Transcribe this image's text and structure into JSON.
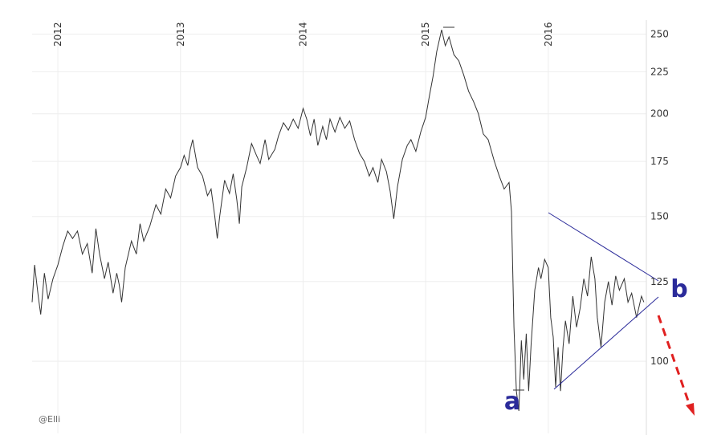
{
  "chart_data": {
    "type": "line",
    "color": "#333333",
    "log_scale": true,
    "grid": true,
    "xlim": [
      2011.79,
      2016.8
    ],
    "xticks": [
      2012,
      2013,
      2014,
      2015,
      2016
    ],
    "ylim": [
      81.7,
      260
    ],
    "yticks": [
      100,
      125,
      150,
      175,
      200,
      225,
      250
    ],
    "x": [
      2011.79,
      2011.81,
      2011.84,
      2011.86,
      2011.89,
      2011.92,
      2011.96,
      2012.0,
      2012.04,
      2012.08,
      2012.12,
      2012.16,
      2012.2,
      2012.24,
      2012.28,
      2012.31,
      2012.34,
      2012.38,
      2012.41,
      2012.45,
      2012.48,
      2012.5,
      2012.52,
      2012.55,
      2012.6,
      2012.64,
      2012.67,
      2012.7,
      2012.75,
      2012.8,
      2012.84,
      2012.88,
      2012.92,
      2012.96,
      2013.0,
      2013.03,
      2013.06,
      2013.08,
      2013.1,
      2013.14,
      2013.18,
      2013.22,
      2013.25,
      2013.28,
      2013.3,
      2013.32,
      2013.36,
      2013.4,
      2013.43,
      2013.46,
      2013.48,
      2013.5,
      2013.54,
      2013.58,
      2013.62,
      2013.65,
      2013.69,
      2013.72,
      2013.77,
      2013.8,
      2013.84,
      2013.88,
      2013.92,
      2013.96,
      2014.0,
      2014.03,
      2014.06,
      2014.09,
      2014.12,
      2014.16,
      2014.19,
      2014.22,
      2014.26,
      2014.3,
      2014.34,
      2014.38,
      2014.42,
      2014.46,
      2014.5,
      2014.54,
      2014.57,
      2014.61,
      2014.64,
      2014.68,
      2014.71,
      2014.74,
      2014.77,
      2014.81,
      2014.85,
      2014.88,
      2014.92,
      2014.96,
      2015.0,
      2015.03,
      2015.06,
      2015.09,
      2015.13,
      2015.16,
      2015.19,
      2015.23,
      2015.27,
      2015.31,
      2015.35,
      2015.39,
      2015.43,
      2015.47,
      2015.51,
      2015.56,
      2015.6,
      2015.64,
      2015.68,
      2015.7,
      2015.72,
      2015.74,
      2015.76,
      2015.78,
      2015.8,
      2015.82,
      2015.84,
      2015.86,
      2015.89,
      2015.92,
      2015.94,
      2015.97,
      2016.0,
      2016.02,
      2016.04,
      2016.06,
      2016.08,
      2016.1,
      2016.12,
      2016.14,
      2016.17,
      2016.2,
      2016.23,
      2016.26,
      2016.29,
      2016.32,
      2016.35,
      2016.38,
      2016.4,
      2016.43,
      2016.46,
      2016.49,
      2016.52,
      2016.55,
      2016.58,
      2016.62,
      2016.65,
      2016.68,
      2016.72,
      2016.76,
      2016.78
    ],
    "values": [
      118,
      131,
      120,
      114,
      128,
      119,
      126,
      131,
      138,
      144,
      141,
      144,
      135,
      139,
      128,
      145,
      135,
      126,
      132,
      121,
      128,
      124,
      118,
      130,
      140,
      135,
      147,
      140,
      146,
      155,
      151,
      162,
      158,
      168,
      172,
      178,
      173,
      181,
      186,
      172,
      168,
      159,
      162,
      150,
      141,
      150,
      166,
      160,
      169,
      157,
      147,
      163,
      172,
      184,
      178,
      174,
      186,
      176,
      181,
      188,
      195,
      191,
      197,
      192,
      203,
      197,
      188,
      197,
      183,
      193,
      186,
      197,
      190,
      198,
      192,
      196,
      186,
      179,
      175,
      168,
      172,
      165,
      176,
      170,
      161,
      149,
      163,
      176,
      183,
      186,
      180,
      190,
      198,
      210,
      222,
      238,
      253,
      242,
      248,
      236,
      232,
      223,
      213,
      207,
      200,
      189,
      186,
      175,
      168,
      162,
      165,
      152,
      110,
      92,
      87,
      106,
      95,
      108,
      92,
      105,
      122,
      130,
      126,
      133,
      130,
      113,
      107,
      93,
      104,
      92,
      104,
      112,
      105,
      120,
      110,
      116,
      126,
      120,
      134,
      126,
      113,
      104,
      118,
      125,
      117,
      127,
      122,
      126,
      118,
      121,
      113,
      120,
      118
    ],
    "annotations": [
      "a",
      "b"
    ],
    "credit": "@Elli"
  }
}
